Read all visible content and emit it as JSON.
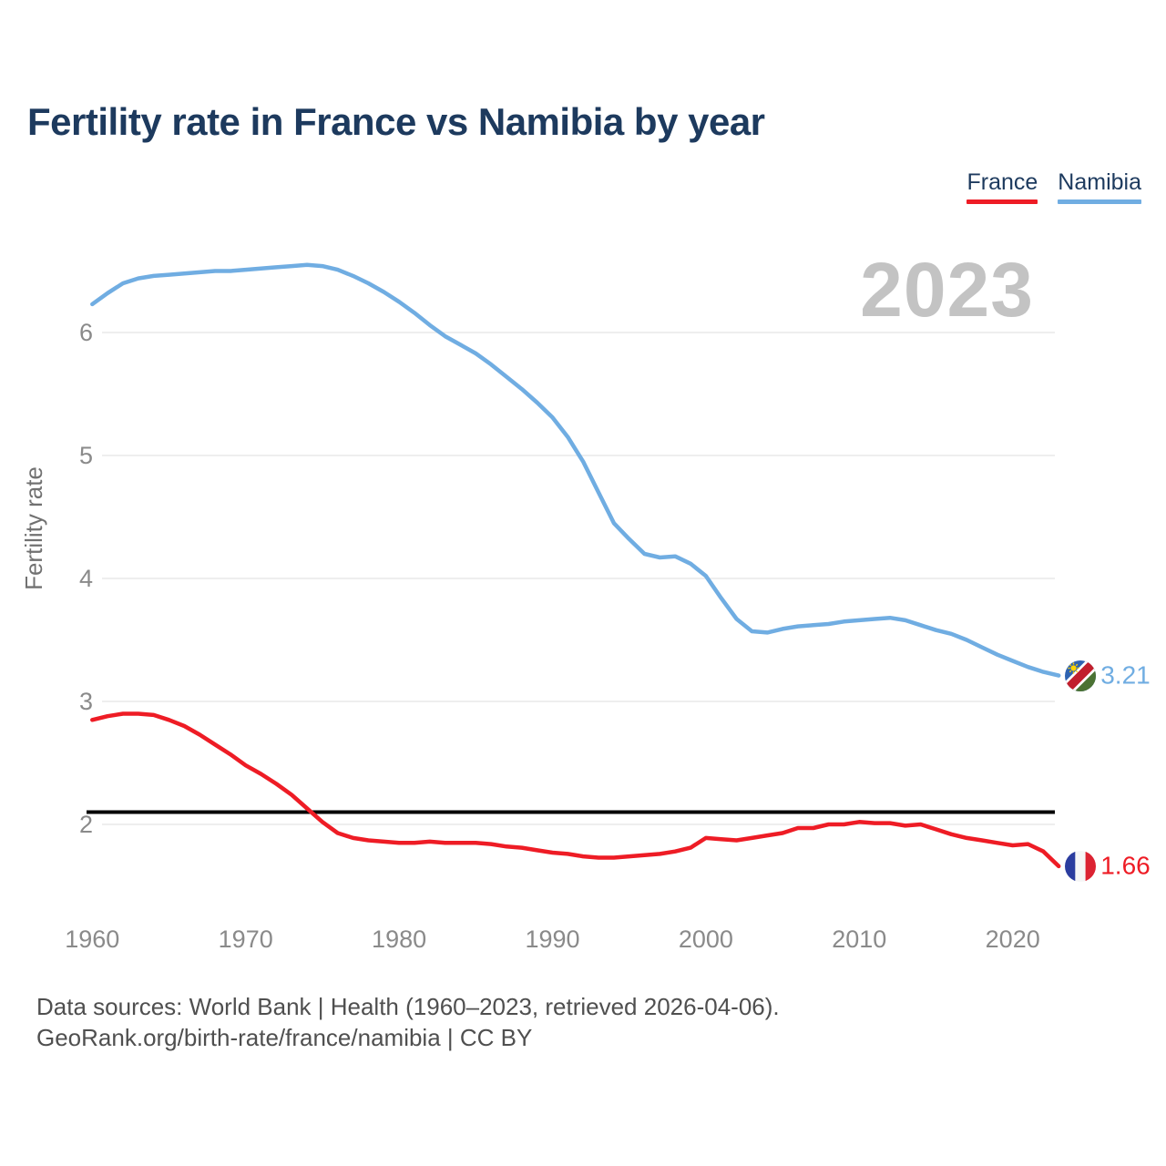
{
  "header": {
    "title": "Fertility rate in France vs Namibia by year"
  },
  "legend": {
    "items": [
      {
        "label": "France",
        "color": "#ee1c25"
      },
      {
        "label": "Namibia",
        "color": "#70ade2"
      }
    ]
  },
  "watermark": "2023",
  "footer": {
    "line1": "Data sources: World Bank | Health (1960–2023, retrieved 2026-04-06).",
    "line2": "GeoRank.org/birth-rate/france/namibia | CC BY"
  },
  "chart_data": {
    "type": "line",
    "title": "Fertility rate in France vs Namibia by year",
    "xlabel": "",
    "ylabel": "Fertility rate",
    "x_start": 1960,
    "x_end": 2023,
    "xticks": [
      1960,
      1970,
      1980,
      1990,
      2000,
      2010,
      2020
    ],
    "yticks": [
      2,
      3,
      4,
      5,
      6
    ],
    "ylim": [
      1.45,
      6.85
    ],
    "grid": "horizontal",
    "legend_position": "top-right",
    "reference_line": {
      "value": 2.1,
      "color": "#000000"
    },
    "series": [
      {
        "name": "France",
        "color": "#ee1c25",
        "end_label": "1.66",
        "flag": "france",
        "values": [
          2.85,
          2.88,
          2.9,
          2.9,
          2.89,
          2.85,
          2.8,
          2.73,
          2.65,
          2.57,
          2.48,
          2.41,
          2.33,
          2.24,
          2.13,
          2.02,
          1.93,
          1.89,
          1.87,
          1.86,
          1.85,
          1.85,
          1.86,
          1.85,
          1.85,
          1.85,
          1.84,
          1.82,
          1.81,
          1.79,
          1.77,
          1.76,
          1.74,
          1.73,
          1.73,
          1.74,
          1.75,
          1.76,
          1.78,
          1.81,
          1.89,
          1.88,
          1.87,
          1.89,
          1.91,
          1.93,
          1.97,
          1.97,
          2.0,
          2.0,
          2.02,
          2.01,
          2.01,
          1.99,
          2.0,
          1.96,
          1.92,
          1.89,
          1.87,
          1.85,
          1.83,
          1.84,
          1.78,
          1.66
        ]
      },
      {
        "name": "Namibia",
        "color": "#70ade2",
        "end_label": "3.21",
        "flag": "namibia",
        "values": [
          6.23,
          6.32,
          6.4,
          6.44,
          6.46,
          6.47,
          6.48,
          6.49,
          6.5,
          6.5,
          6.51,
          6.52,
          6.53,
          6.54,
          6.55,
          6.54,
          6.51,
          6.46,
          6.4,
          6.33,
          6.25,
          6.16,
          6.06,
          5.97,
          5.9,
          5.83,
          5.74,
          5.64,
          5.54,
          5.43,
          5.31,
          5.15,
          4.95,
          4.7,
          4.45,
          4.32,
          4.2,
          4.17,
          4.18,
          4.12,
          4.02,
          3.84,
          3.67,
          3.57,
          3.56,
          3.59,
          3.61,
          3.62,
          3.63,
          3.65,
          3.66,
          3.67,
          3.68,
          3.66,
          3.62,
          3.58,
          3.55,
          3.5,
          3.44,
          3.38,
          3.33,
          3.28,
          3.24,
          3.21
        ]
      }
    ]
  }
}
